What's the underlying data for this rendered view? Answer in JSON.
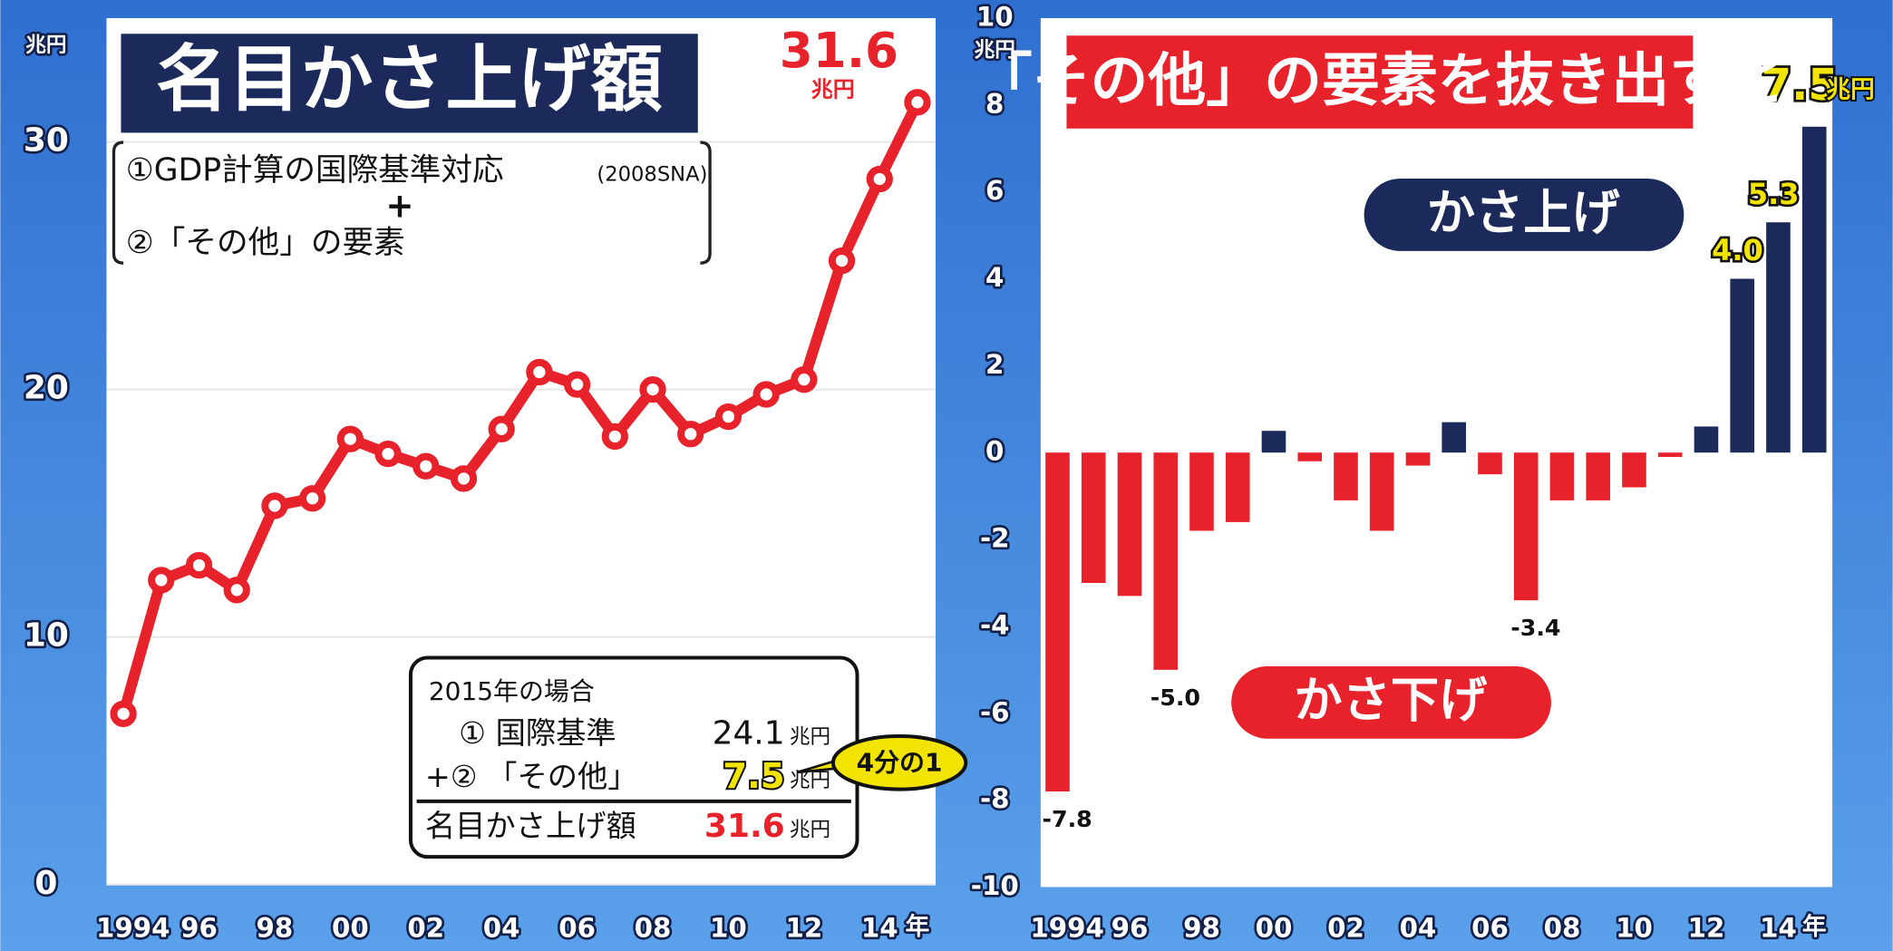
{
  "chart_data": [
    {
      "type": "line",
      "title": "名目かさ上げ額",
      "y_unit": "兆円",
      "x_unit": "年",
      "categories": [
        "1994",
        null,
        "96",
        null,
        "98",
        null,
        "00",
        null,
        "02",
        null,
        "04",
        null,
        "06",
        null,
        "08",
        null,
        "10",
        null,
        "12",
        null,
        "14",
        null
      ],
      "values": [
        6.9,
        12.3,
        12.9,
        11.9,
        15.3,
        15.6,
        18.0,
        17.4,
        16.9,
        16.4,
        18.4,
        20.7,
        20.2,
        18.1,
        20.0,
        18.2,
        18.9,
        19.8,
        20.4,
        25.2,
        28.5,
        31.6
      ],
      "color": "#e8222a",
      "ylim": [
        0,
        35
      ],
      "yticks": [
        0,
        10,
        20,
        30
      ],
      "grid": true,
      "note": {
        "lines": [
          "①GDP計算の国際基準対応",
          "(2008SNA)",
          "+",
          "②「その他」の要素"
        ]
      },
      "inset": {
        "title": "2015年の場合",
        "rows": [
          {
            "label": "① 国際基準",
            "value": 24.1
          },
          {
            "label": "+② 「その他」",
            "value": 7.5
          },
          {
            "label": "名目かさ上げ額",
            "value": 31.6
          }
        ],
        "callout": "4分の1"
      }
    },
    {
      "type": "bar",
      "title": "「その他」の要素を抜き出すと",
      "y_unit": "兆円",
      "x_unit": "年",
      "categories": [
        "1994",
        null,
        "96",
        null,
        "98",
        null,
        "00",
        null,
        "02",
        null,
        "04",
        null,
        "06",
        null,
        "08",
        null,
        "10",
        null,
        "12",
        null,
        "14",
        null
      ],
      "values": [
        -7.8,
        -3.0,
        -3.3,
        -5.0,
        -1.8,
        -1.6,
        0.5,
        -0.2,
        -1.1,
        -1.8,
        -0.3,
        0.7,
        -0.5,
        -3.4,
        -1.1,
        -1.1,
        -0.8,
        -0.1,
        0.6,
        4.0,
        5.3,
        7.5
      ],
      "value_labels": [
        "-7.8",
        null,
        null,
        "-5.0",
        null,
        null,
        null,
        null,
        null,
        null,
        null,
        null,
        null,
        "-3.4",
        null,
        null,
        null,
        null,
        null,
        "4.0",
        "5.3",
        "7.5"
      ],
      "colors": [
        "#e8222a",
        "#e8222a",
        "#e8222a",
        "#e8222a",
        "#e8222a",
        "#e8222a",
        "#1b2a5a",
        "#e8222a",
        "#e8222a",
        "#e8222a",
        "#e8222a",
        "#1b2a5a",
        "#e8222a",
        "#e8222a",
        "#e8222a",
        "#e8222a",
        "#e8222a",
        "#e8222a",
        "#1b2a5a",
        "#1b2a5a",
        "#1b2a5a",
        "#1b2a5a"
      ],
      "ylim": [
        -10,
        10
      ],
      "yticks": [
        -10,
        -8,
        -6,
        -4,
        -2,
        0,
        2,
        4,
        6,
        8,
        10
      ],
      "grid": false,
      "up_label": "かさ上げ",
      "down_label": "かさ下げ"
    }
  ]
}
